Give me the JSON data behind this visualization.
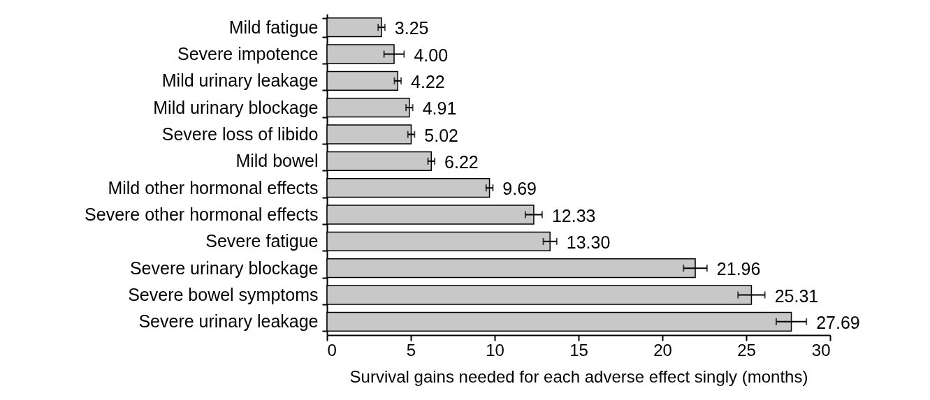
{
  "chart_data": {
    "type": "bar",
    "orientation": "horizontal",
    "categories": [
      "Mild fatigue",
      "Severe impotence",
      "Mild urinary leakage",
      "Mild urinary blockage",
      "Severe loss of libido",
      "Mild bowel",
      "Mild other hormonal effects",
      "Severe other hormonal effects",
      "Severe fatigue",
      "Severe urinary blockage",
      "Severe bowel symptoms",
      "Severe urinary leakage"
    ],
    "values": [
      3.25,
      4.0,
      4.22,
      4.91,
      5.02,
      6.22,
      9.69,
      12.33,
      13.3,
      21.96,
      25.31,
      27.69
    ],
    "value_labels": [
      "3.25",
      "4.00",
      "4.22",
      "4.91",
      "5.02",
      "6.22",
      "9.69",
      "12.33",
      "13.30",
      "21.96",
      "25.31",
      "27.69"
    ],
    "errors": [
      0.2,
      0.6,
      0.2,
      0.2,
      0.2,
      0.2,
      0.2,
      0.5,
      0.4,
      0.7,
      0.8,
      0.9
    ],
    "color": "#c8c8c8",
    "xlabel": "Survival gains needed for each adverse effect singly (months)",
    "xlim": [
      0,
      30
    ],
    "xticks": [
      0,
      5,
      10,
      15,
      20,
      25,
      30
    ],
    "grid": false
  }
}
